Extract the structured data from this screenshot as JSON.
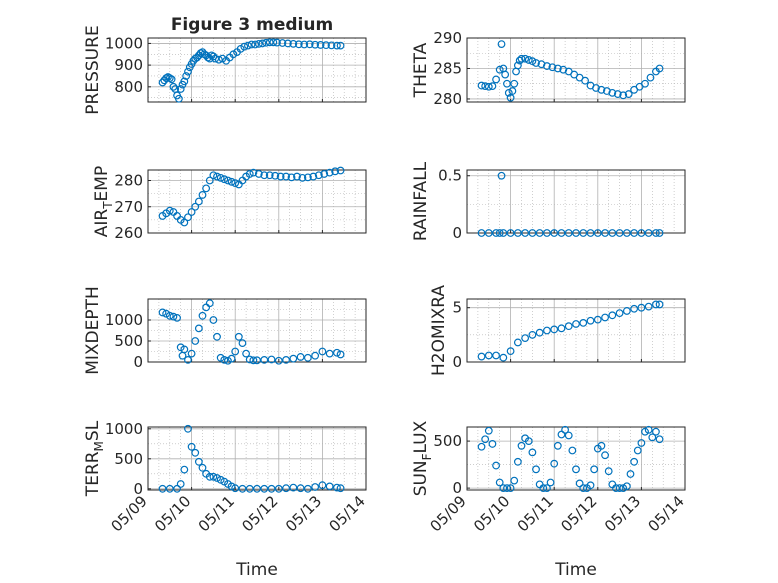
{
  "figure": {
    "title": "Figure 3 medium"
  },
  "chart_data": [
    {
      "type": "scatter",
      "ylabel": "PRESSURE",
      "xlim": [
        "05/09",
        "05/14"
      ],
      "ylim": [
        730,
        1025
      ],
      "yticks": [
        800,
        900,
        1000
      ],
      "xtick_labels": [],
      "grid": true,
      "x": [
        "05/09 08:00",
        "05/09 09:00",
        "05/09 10:00",
        "05/09 11:00",
        "05/09 12:00",
        "05/09 13:00",
        "05/09 14:00",
        "05/09 15:00",
        "05/09 16:00",
        "05/09 17:00",
        "05/09 18:00",
        "05/09 19:00",
        "05/09 20:00",
        "05/09 21:00",
        "05/09 22:00",
        "05/09 23:00",
        "05/10 00:00",
        "05/10 01:00",
        "05/10 02:00",
        "05/10 03:00",
        "05/10 04:00",
        "05/10 05:00",
        "05/10 06:00",
        "05/10 07:00",
        "05/10 08:00",
        "05/10 09:00",
        "05/10 10:00",
        "05/10 11:00",
        "05/10 12:00",
        "05/10 13:00",
        "05/10 15:00",
        "05/10 17:00",
        "05/10 19:00",
        "05/10 21:00",
        "05/10 23:00",
        "05/11 01:00",
        "05/11 03:00",
        "05/11 05:00",
        "05/11 07:00",
        "05/11 09:00",
        "05/11 11:00",
        "05/11 13:00",
        "05/11 15:00",
        "05/11 17:00",
        "05/11 19:00",
        "05/11 21:00",
        "05/11 23:00",
        "05/12 02:00",
        "05/12 05:00",
        "05/12 08:00",
        "05/12 11:00",
        "05/12 14:00",
        "05/12 17:00",
        "05/12 20:00",
        "05/12 23:00",
        "05/13 02:00",
        "05/13 05:00",
        "05/13 08:00",
        "05/13 10:00"
      ],
      "y": [
        820,
        830,
        840,
        845,
        840,
        835,
        800,
        790,
        760,
        745,
        790,
        810,
        825,
        850,
        870,
        890,
        905,
        920,
        930,
        935,
        945,
        955,
        960,
        950,
        945,
        935,
        930,
        945,
        940,
        930,
        925,
        930,
        920,
        935,
        950,
        960,
        975,
        985,
        990,
        995,
        995,
        998,
        1000,
        1003,
        1005,
        1005,
        1004,
        1002,
        1000,
        998,
        996,
        995,
        996,
        994,
        993,
        992,
        991,
        990,
        990
      ]
    },
    {
      "type": "scatter",
      "ylabel": "THETA",
      "xlim": [
        "05/09",
        "05/14"
      ],
      "ylim": [
        279.5,
        290
      ],
      "yticks": [
        280,
        285,
        290
      ],
      "xtick_labels": [],
      "grid": true,
      "x": [
        "05/09 08:00",
        "05/09 10:00",
        "05/09 12:00",
        "05/09 14:00",
        "05/09 16:00",
        "05/09 18:00",
        "05/09 19:00",
        "05/09 20:00",
        "05/09 21:00",
        "05/09 22:00",
        "05/09 23:00",
        "05/10 00:00",
        "05/10 01:00",
        "05/10 02:00",
        "05/10 03:00",
        "05/10 04:00",
        "05/10 05:00",
        "05/10 06:00",
        "05/10 08:00",
        "05/10 10:00",
        "05/10 12:00",
        "05/10 14:00",
        "05/10 17:00",
        "05/10 20:00",
        "05/10 23:00",
        "05/11 02:00",
        "05/11 05:00",
        "05/11 08:00",
        "05/11 11:00",
        "05/11 14:00",
        "05/11 17:00",
        "05/11 20:00",
        "05/11 23:00",
        "05/12 02:00",
        "05/12 05:00",
        "05/12 08:00",
        "05/12 11:00",
        "05/12 14:00",
        "05/12 17:00",
        "05/12 20:00",
        "05/12 23:00",
        "05/13 02:00",
        "05/13 05:00",
        "05/13 08:00",
        "05/13 10:00"
      ],
      "y": [
        282.2,
        282.1,
        282.0,
        282.1,
        283.2,
        284.8,
        289.0,
        285.0,
        284.0,
        282.5,
        281.0,
        280.2,
        281.3,
        282.5,
        284.5,
        285.5,
        286.3,
        286.6,
        286.6,
        286.4,
        286.2,
        285.9,
        285.7,
        285.4,
        285.2,
        285.0,
        284.8,
        284.5,
        284.0,
        283.5,
        283.0,
        282.2,
        281.8,
        281.5,
        281.3,
        281.0,
        280.8,
        280.6,
        280.8,
        281.5,
        282.0,
        282.5,
        283.5,
        284.5,
        285.0
      ]
    },
    {
      "type": "scatter",
      "ylabel": "AIR_TEMP",
      "xlim": [
        "05/09",
        "05/14"
      ],
      "ylim": [
        260,
        284
      ],
      "yticks": [
        260,
        270,
        280
      ],
      "xtick_labels": [],
      "grid": true,
      "x": [
        "05/09 08:00",
        "05/09 10:00",
        "05/09 12:00",
        "05/09 14:00",
        "05/09 16:00",
        "05/09 18:00",
        "05/09 20:00",
        "05/09 22:00",
        "05/10 00:00",
        "05/10 02:00",
        "05/10 04:00",
        "05/10 06:00",
        "05/10 08:00",
        "05/10 10:00",
        "05/10 12:00",
        "05/10 14:00",
        "05/10 16:00",
        "05/10 18:00",
        "05/10 20:00",
        "05/10 22:00",
        "05/11 00:00",
        "05/11 02:00",
        "05/11 04:00",
        "05/11 06:00",
        "05/11 08:00",
        "05/11 10:00",
        "05/11 13:00",
        "05/11 16:00",
        "05/11 19:00",
        "05/11 22:00",
        "05/12 01:00",
        "05/12 04:00",
        "05/12 07:00",
        "05/12 10:00",
        "05/12 13:00",
        "05/12 16:00",
        "05/12 19:00",
        "05/12 22:00",
        "05/13 01:00",
        "05/13 04:00",
        "05/13 07:00",
        "05/13 10:00"
      ],
      "y": [
        266.5,
        267.5,
        268.5,
        268.0,
        266.5,
        265.0,
        264.0,
        266.0,
        268.0,
        270.0,
        272.0,
        274.5,
        277.0,
        280.0,
        282.0,
        281.5,
        281.0,
        280.5,
        280.0,
        279.5,
        279.0,
        278.5,
        280.0,
        281.5,
        282.5,
        283.0,
        282.5,
        282.0,
        282.0,
        281.8,
        281.5,
        281.5,
        281.2,
        281.5,
        281.0,
        281.2,
        281.5,
        282.0,
        282.5,
        283.0,
        283.5,
        283.8
      ]
    },
    {
      "type": "scatter",
      "ylabel": "RAINFALL",
      "xlim": [
        "05/09",
        "05/14"
      ],
      "ylim": [
        0,
        0.55
      ],
      "yticks": [
        0,
        0.5
      ],
      "xtick_labels": [],
      "grid": true,
      "x": [
        "05/09 08:00",
        "05/09 12:00",
        "05/09 16:00",
        "05/09 18:00",
        "05/09 19:00",
        "05/09 20:00",
        "05/10 00:00",
        "05/10 04:00",
        "05/10 08:00",
        "05/10 12:00",
        "05/10 16:00",
        "05/10 20:00",
        "05/11 00:00",
        "05/11 04:00",
        "05/11 08:00",
        "05/11 12:00",
        "05/11 16:00",
        "05/11 20:00",
        "05/12 00:00",
        "05/12 04:00",
        "05/12 08:00",
        "05/12 12:00",
        "05/12 16:00",
        "05/12 20:00",
        "05/13 00:00",
        "05/13 04:00",
        "05/13 08:00",
        "05/13 10:00"
      ],
      "y": [
        0,
        0,
        0,
        0,
        0.5,
        0,
        0,
        0,
        0,
        0,
        0,
        0,
        0,
        0,
        0,
        0,
        0,
        0,
        0,
        0,
        0,
        0,
        0,
        0,
        0,
        0,
        0,
        0
      ]
    },
    {
      "type": "scatter",
      "ylabel": "MIXDEPTH",
      "xlim": [
        "05/09",
        "05/14"
      ],
      "ylim": [
        0,
        1500
      ],
      "yticks": [
        0,
        500,
        1000
      ],
      "xtick_labels": [],
      "grid": true,
      "x": [
        "05/09 08:00",
        "05/09 10:00",
        "05/09 12:00",
        "05/09 14:00",
        "05/09 16:00",
        "05/09 18:00",
        "05/09 19:00",
        "05/09 20:00",
        "05/09 22:00",
        "05/10 00:00",
        "05/10 02:00",
        "05/10 04:00",
        "05/10 06:00",
        "05/10 08:00",
        "05/10 10:00",
        "05/10 12:00",
        "05/10 14:00",
        "05/10 16:00",
        "05/10 18:00",
        "05/10 20:00",
        "05/10 22:00",
        "05/11 00:00",
        "05/11 02:00",
        "05/11 04:00",
        "05/11 06:00",
        "05/11 08:00",
        "05/11 10:00",
        "05/11 12:00",
        "05/11 16:00",
        "05/11 20:00",
        "05/12 00:00",
        "05/12 04:00",
        "05/12 08:00",
        "05/12 12:00",
        "05/12 16:00",
        "05/12 20:00",
        "05/13 00:00",
        "05/13 04:00",
        "05/13 08:00",
        "05/13 10:00"
      ],
      "y": [
        1180,
        1150,
        1100,
        1080,
        1050,
        350,
        150,
        300,
        50,
        200,
        500,
        800,
        1100,
        1300,
        1400,
        1000,
        600,
        100,
        50,
        30,
        80,
        250,
        600,
        450,
        200,
        60,
        40,
        40,
        50,
        60,
        30,
        50,
        80,
        120,
        100,
        150,
        250,
        200,
        220,
        180
      ]
    },
    {
      "type": "scatter",
      "ylabel": "H2OMIXRA",
      "xlim": [
        "05/09",
        "05/14"
      ],
      "ylim": [
        0,
        5.8
      ],
      "yticks": [
        0,
        5
      ],
      "xtick_labels": [],
      "grid": true,
      "x": [
        "05/09 08:00",
        "05/09 12:00",
        "05/09 16:00",
        "05/09 20:00",
        "05/10 00:00",
        "05/10 04:00",
        "05/10 08:00",
        "05/10 12:00",
        "05/10 16:00",
        "05/10 20:00",
        "05/11 00:00",
        "05/11 04:00",
        "05/11 08:00",
        "05/11 12:00",
        "05/11 16:00",
        "05/11 20:00",
        "05/12 00:00",
        "05/12 04:00",
        "05/12 08:00",
        "05/12 12:00",
        "05/12 16:00",
        "05/12 20:00",
        "05/13 00:00",
        "05/13 04:00",
        "05/13 08:00",
        "05/13 10:00"
      ],
      "y": [
        0.5,
        0.6,
        0.6,
        0.4,
        1.0,
        1.8,
        2.2,
        2.5,
        2.7,
        2.9,
        3.0,
        3.1,
        3.3,
        3.5,
        3.6,
        3.8,
        3.9,
        4.1,
        4.3,
        4.5,
        4.7,
        4.9,
        5.0,
        5.1,
        5.3,
        5.3
      ]
    },
    {
      "type": "scatter",
      "ylabel": "TERR_MSL",
      "xlabel": "Time",
      "xlim": [
        "05/09",
        "05/14"
      ],
      "ylim": [
        -20,
        1030
      ],
      "yticks": [
        0,
        500,
        1000
      ],
      "xtick_labels": [
        "05/09",
        "05/10",
        "05/11",
        "05/12",
        "05/13",
        "05/14"
      ],
      "grid": true,
      "x": [
        "05/09 08:00",
        "05/09 12:00",
        "05/09 16:00",
        "05/09 18:00",
        "05/09 20:00",
        "05/09 22:00",
        "05/10 00:00",
        "05/10 02:00",
        "05/10 04:00",
        "05/10 06:00",
        "05/10 08:00",
        "05/10 10:00",
        "05/10 12:00",
        "05/10 14:00",
        "05/10 16:00",
        "05/10 18:00",
        "05/10 20:00",
        "05/10 22:00",
        "05/11 00:00",
        "05/11 04:00",
        "05/11 08:00",
        "05/11 12:00",
        "05/11 16:00",
        "05/11 20:00",
        "05/12 00:00",
        "05/12 04:00",
        "05/12 08:00",
        "05/12 12:00",
        "05/12 16:00",
        "05/12 20:00",
        "05/13 00:00",
        "05/13 04:00",
        "05/13 08:00",
        "05/13 10:00"
      ],
      "y": [
        0,
        0,
        0,
        80,
        320,
        1000,
        700,
        600,
        450,
        350,
        250,
        200,
        200,
        180,
        150,
        120,
        80,
        40,
        10,
        0,
        0,
        0,
        0,
        0,
        0,
        10,
        20,
        10,
        0,
        30,
        60,
        40,
        20,
        10
      ]
    },
    {
      "type": "scatter",
      "ylabel": "SUN_FLUX",
      "xlabel": "Time",
      "xlim": [
        "05/09",
        "05/14"
      ],
      "ylim": [
        -20,
        650
      ],
      "yticks": [
        0,
        500
      ],
      "xtick_labels": [
        "05/09",
        "05/10",
        "05/11",
        "05/12",
        "05/13",
        "05/14"
      ],
      "grid": true,
      "x": [
        "05/09 08:00",
        "05/09 10:00",
        "05/09 12:00",
        "05/09 14:00",
        "05/09 16:00",
        "05/09 18:00",
        "05/09 20:00",
        "05/09 22:00",
        "05/10 00:00",
        "05/10 02:00",
        "05/10 04:00",
        "05/10 06:00",
        "05/10 08:00",
        "05/10 10:00",
        "05/10 12:00",
        "05/10 14:00",
        "05/10 16:00",
        "05/10 18:00",
        "05/10 20:00",
        "05/10 22:00",
        "05/11 00:00",
        "05/11 02:00",
        "05/11 04:00",
        "05/11 06:00",
        "05/11 08:00",
        "05/11 10:00",
        "05/11 12:00",
        "05/11 14:00",
        "05/11 16:00",
        "05/11 18:00",
        "05/11 20:00",
        "05/11 22:00",
        "05/12 00:00",
        "05/12 02:00",
        "05/12 04:00",
        "05/12 06:00",
        "05/12 08:00",
        "05/12 10:00",
        "05/12 12:00",
        "05/12 14:00",
        "05/12 16:00",
        "05/12 18:00",
        "05/12 20:00",
        "05/12 22:00",
        "05/13 00:00",
        "05/13 02:00",
        "05/13 04:00",
        "05/13 06:00",
        "05/13 08:00",
        "05/13 10:00"
      ],
      "y": [
        440,
        520,
        610,
        470,
        240,
        60,
        0,
        0,
        0,
        80,
        280,
        450,
        530,
        500,
        380,
        200,
        40,
        0,
        0,
        60,
        260,
        450,
        570,
        620,
        560,
        400,
        200,
        50,
        0,
        0,
        30,
        200,
        420,
        450,
        350,
        180,
        40,
        0,
        0,
        0,
        20,
        150,
        280,
        400,
        480,
        600,
        620,
        540,
        600,
        520
      ]
    }
  ]
}
